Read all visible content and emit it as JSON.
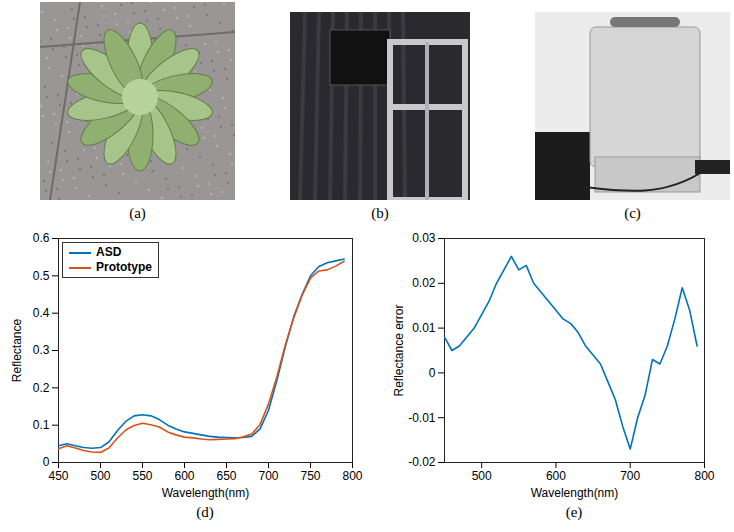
{
  "images": [
    {
      "label": "(a)"
    },
    {
      "label": "(b)"
    },
    {
      "label": "(c)"
    }
  ],
  "chart_data": [
    {
      "type": "line",
      "caption": "(d)",
      "x_label": "Wavelength(nm)",
      "y_label": "Reflectance",
      "x": [
        450,
        460,
        470,
        480,
        490,
        500,
        510,
        520,
        530,
        540,
        550,
        560,
        570,
        580,
        590,
        600,
        610,
        620,
        630,
        640,
        650,
        660,
        670,
        680,
        690,
        700,
        710,
        720,
        730,
        740,
        750,
        760,
        770,
        780,
        790
      ],
      "series": [
        {
          "name": "ASD",
          "color": "#0072bd",
          "values": [
            0.045,
            0.05,
            0.045,
            0.04,
            0.038,
            0.04,
            0.055,
            0.085,
            0.11,
            0.125,
            0.128,
            0.125,
            0.115,
            0.1,
            0.09,
            0.082,
            0.078,
            0.074,
            0.07,
            0.068,
            0.067,
            0.066,
            0.067,
            0.07,
            0.09,
            0.14,
            0.22,
            0.31,
            0.39,
            0.45,
            0.5,
            0.525,
            0.535,
            0.54,
            0.545
          ]
        },
        {
          "name": "Prototype",
          "color": "#d95319",
          "values": [
            0.037,
            0.045,
            0.039,
            0.032,
            0.028,
            0.027,
            0.039,
            0.065,
            0.087,
            0.099,
            0.105,
            0.101,
            0.095,
            0.082,
            0.074,
            0.068,
            0.066,
            0.063,
            0.061,
            0.062,
            0.063,
            0.064,
            0.069,
            0.076,
            0.102,
            0.157,
            0.23,
            0.315,
            0.387,
            0.448,
            0.494,
            0.513,
            0.516,
            0.526,
            0.539
          ]
        }
      ],
      "xlim": [
        450,
        800
      ],
      "xticks": [
        450,
        500,
        550,
        600,
        650,
        700,
        750,
        800
      ],
      "ylim": [
        0,
        0.6
      ],
      "yticks": [
        0,
        0.1,
        0.2,
        0.3,
        0.4,
        0.5,
        0.6
      ],
      "grid": false,
      "legend": "top-left"
    },
    {
      "type": "line",
      "caption": "(e)",
      "x_label": "Wavelength(nm)",
      "y_label": "Reflectance error",
      "x": [
        450,
        460,
        470,
        480,
        490,
        500,
        510,
        520,
        530,
        540,
        550,
        560,
        570,
        580,
        590,
        600,
        610,
        620,
        630,
        640,
        650,
        660,
        670,
        680,
        690,
        700,
        710,
        720,
        730,
        740,
        750,
        760,
        770,
        780,
        790
      ],
      "series": [
        {
          "name": "Reflectance error",
          "color": "#0072bd",
          "values": [
            0.008,
            0.005,
            0.006,
            0.008,
            0.01,
            0.013,
            0.016,
            0.02,
            0.023,
            0.026,
            0.023,
            0.024,
            0.02,
            0.018,
            0.016,
            0.014,
            0.012,
            0.011,
            0.009,
            0.006,
            0.004,
            0.002,
            -0.002,
            -0.006,
            -0.012,
            -0.017,
            -0.01,
            -0.005,
            0.003,
            0.002,
            0.006,
            0.012,
            0.019,
            0.014,
            0.006
          ]
        }
      ],
      "xlim": [
        450,
        800
      ],
      "xticks": [
        500,
        600,
        700,
        800
      ],
      "ylim": [
        -0.02,
        0.03
      ],
      "yticks": [
        -0.02,
        -0.01,
        0,
        0.01,
        0.02,
        0.03
      ],
      "grid": false
    }
  ]
}
